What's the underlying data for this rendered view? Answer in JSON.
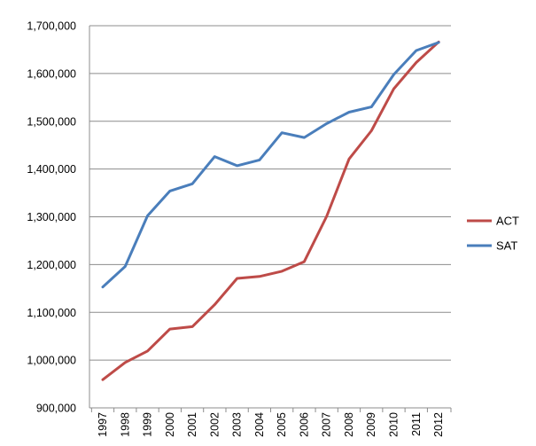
{
  "chart_data": {
    "type": "line",
    "categories": [
      "1997",
      "1998",
      "1999",
      "2000",
      "2001",
      "2002",
      "2003",
      "2004",
      "2005",
      "2006",
      "2007",
      "2008",
      "2009",
      "2010",
      "2011",
      "2012"
    ],
    "series": [
      {
        "name": "ACT",
        "color": "#be4b48",
        "values": [
          959000,
          995000,
          1019000,
          1065000,
          1070000,
          1116000,
          1171000,
          1175000,
          1186000,
          1206000,
          1301000,
          1421000,
          1480000,
          1568000,
          1623000,
          1666000
        ]
      },
      {
        "name": "SAT",
        "color": "#4a7ebb",
        "values": [
          1153000,
          1196000,
          1302000,
          1354000,
          1369000,
          1426000,
          1407000,
          1419000,
          1476000,
          1466000,
          1495000,
          1519000,
          1530000,
          1598000,
          1648000,
          1665000
        ]
      }
    ],
    "ylim": [
      900000,
      1700000
    ],
    "ytick_labels": [
      "900,000",
      "1,000,000",
      "1,100,000",
      "1,200,000",
      "1,300,000",
      "1,400,000",
      "1,500,000",
      "1,600,000",
      "1,700,000"
    ],
    "grid": true,
    "legend": "right",
    "title": "",
    "xlabel": "",
    "ylabel": ""
  }
}
